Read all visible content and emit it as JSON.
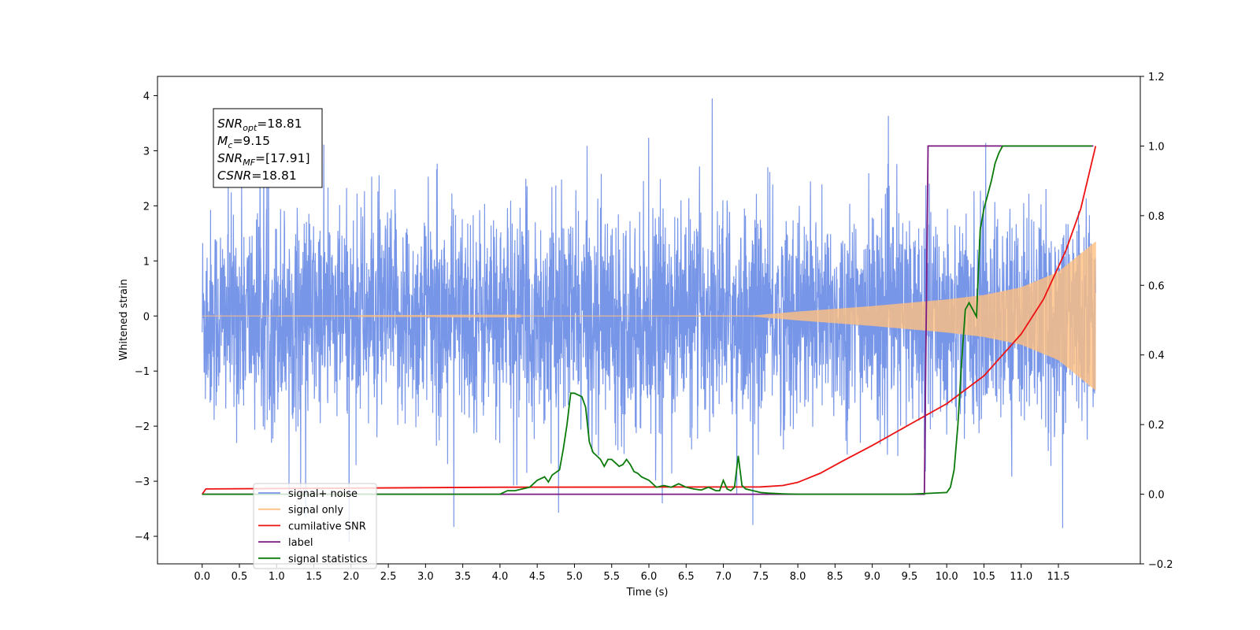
{
  "chart_data": {
    "type": "line",
    "xlabel": "Time (s)",
    "ylabel": "Whitened strain",
    "xlim": [
      -0.6,
      12.6
    ],
    "ylim": [
      -4.5,
      4.35
    ],
    "y2lim": [
      -0.2,
      1.2
    ],
    "xticks": [
      "0.0",
      "0.5",
      "1.0",
      "1.5",
      "2.0",
      "2.5",
      "3.0",
      "3.5",
      "4.0",
      "4.5",
      "5.0",
      "5.5",
      "6.0",
      "6.5",
      "7.0",
      "7.5",
      "8.0",
      "8.5",
      "9.0",
      "9.5",
      "10.0",
      "10.5",
      "11.0",
      "11.5"
    ],
    "yticks": [
      "4",
      "3",
      "2",
      "1",
      "0",
      "−1",
      "−2",
      "−3",
      "−4"
    ],
    "y2ticks": [
      "1.2",
      "1.0",
      "0.8",
      "0.6",
      "0.4",
      "0.2",
      "0.0",
      "−0.2"
    ],
    "legend_position": "lower-left",
    "grid": false,
    "annotation": [
      {
        "base": "SNR",
        "sub": "opt",
        "rest": "=18.81"
      },
      {
        "base": "M",
        "sub": "c",
        "rest": "=9.15"
      },
      {
        "base": "SNR",
        "sub": "MF",
        "rest": "=[17.91]"
      },
      {
        "base": "CSNR",
        "sub": "",
        "rest": "=18.81"
      }
    ],
    "series": [
      {
        "name": "signal+ noise",
        "color": "#7896e8",
        "axis": "left",
        "kind": "noise",
        "x_range": [
          0.0,
          12.0
        ],
        "amplitude_range": [
          -4.1,
          3.95
        ]
      },
      {
        "name": "signal only",
        "color": "#ffbf80",
        "axis": "left",
        "kind": "chirp",
        "x_range": [
          0.0,
          12.0
        ],
        "envelope": {
          "x": [
            0,
            7.4,
            8.0,
            9.0,
            10.0,
            10.5,
            11.0,
            11.5,
            12.0
          ],
          "y": [
            0,
            0.01,
            0.08,
            0.18,
            0.3,
            0.38,
            0.52,
            0.8,
            1.35
          ]
        }
      },
      {
        "name": "cumilative SNR",
        "color": "#ee1111",
        "axis": "right",
        "x": [
          0.0,
          0.05,
          4.0,
          7.5,
          7.8,
          8.0,
          8.3,
          8.6,
          9.0,
          9.5,
          10.0,
          10.5,
          11.0,
          11.3,
          11.6,
          11.8,
          12.0
        ],
        "y": [
          0.0,
          0.015,
          0.02,
          0.021,
          0.025,
          0.034,
          0.06,
          0.095,
          0.14,
          0.2,
          0.26,
          0.34,
          0.46,
          0.56,
          0.7,
          0.82,
          1.0
        ]
      },
      {
        "name": "label",
        "color": "#7a1a80",
        "axis": "right",
        "x": [
          0.0,
          9.7,
          9.75,
          11.97
        ],
        "y": [
          0.0,
          0.0,
          1.0,
          1.0
        ]
      },
      {
        "name": "signal statistics",
        "color": "#0a7a0a",
        "axis": "right",
        "x": [
          0.0,
          4.0,
          4.1,
          4.2,
          4.3,
          4.4,
          4.5,
          4.6,
          4.65,
          4.7,
          4.8,
          4.85,
          4.9,
          4.95,
          5.0,
          5.05,
          5.1,
          5.15,
          5.2,
          5.25,
          5.3,
          5.35,
          5.4,
          5.45,
          5.5,
          5.55,
          5.6,
          5.65,
          5.7,
          5.75,
          5.8,
          5.85,
          5.9,
          5.95,
          6.0,
          6.1,
          6.2,
          6.3,
          6.4,
          6.5,
          6.6,
          6.7,
          6.8,
          6.9,
          6.95,
          7.0,
          7.05,
          7.1,
          7.15,
          7.2,
          7.25,
          7.3,
          7.4,
          7.5,
          7.6,
          7.7,
          7.8,
          8.0,
          9.5,
          10.0,
          10.05,
          10.1,
          10.15,
          10.2,
          10.25,
          10.3,
          10.35,
          10.4,
          10.45,
          10.5,
          10.55,
          10.6,
          10.65,
          10.7,
          10.75,
          11.95
        ],
        "y": [
          0.0,
          0.0,
          0.01,
          0.01,
          0.015,
          0.02,
          0.04,
          0.05,
          0.035,
          0.055,
          0.07,
          0.13,
          0.2,
          0.29,
          0.29,
          0.285,
          0.28,
          0.25,
          0.15,
          0.12,
          0.11,
          0.1,
          0.08,
          0.1,
          0.1,
          0.09,
          0.08,
          0.085,
          0.1,
          0.085,
          0.065,
          0.06,
          0.05,
          0.045,
          0.04,
          0.02,
          0.025,
          0.02,
          0.03,
          0.02,
          0.015,
          0.012,
          0.02,
          0.01,
          0.01,
          0.04,
          0.015,
          0.01,
          0.02,
          0.11,
          0.025,
          0.015,
          0.01,
          0.005,
          0.003,
          0.002,
          0.001,
          0.0,
          0.0,
          0.005,
          0.02,
          0.07,
          0.2,
          0.38,
          0.53,
          0.55,
          0.53,
          0.51,
          0.76,
          0.82,
          0.86,
          0.9,
          0.95,
          0.98,
          1.0,
          1.0
        ]
      }
    ]
  }
}
